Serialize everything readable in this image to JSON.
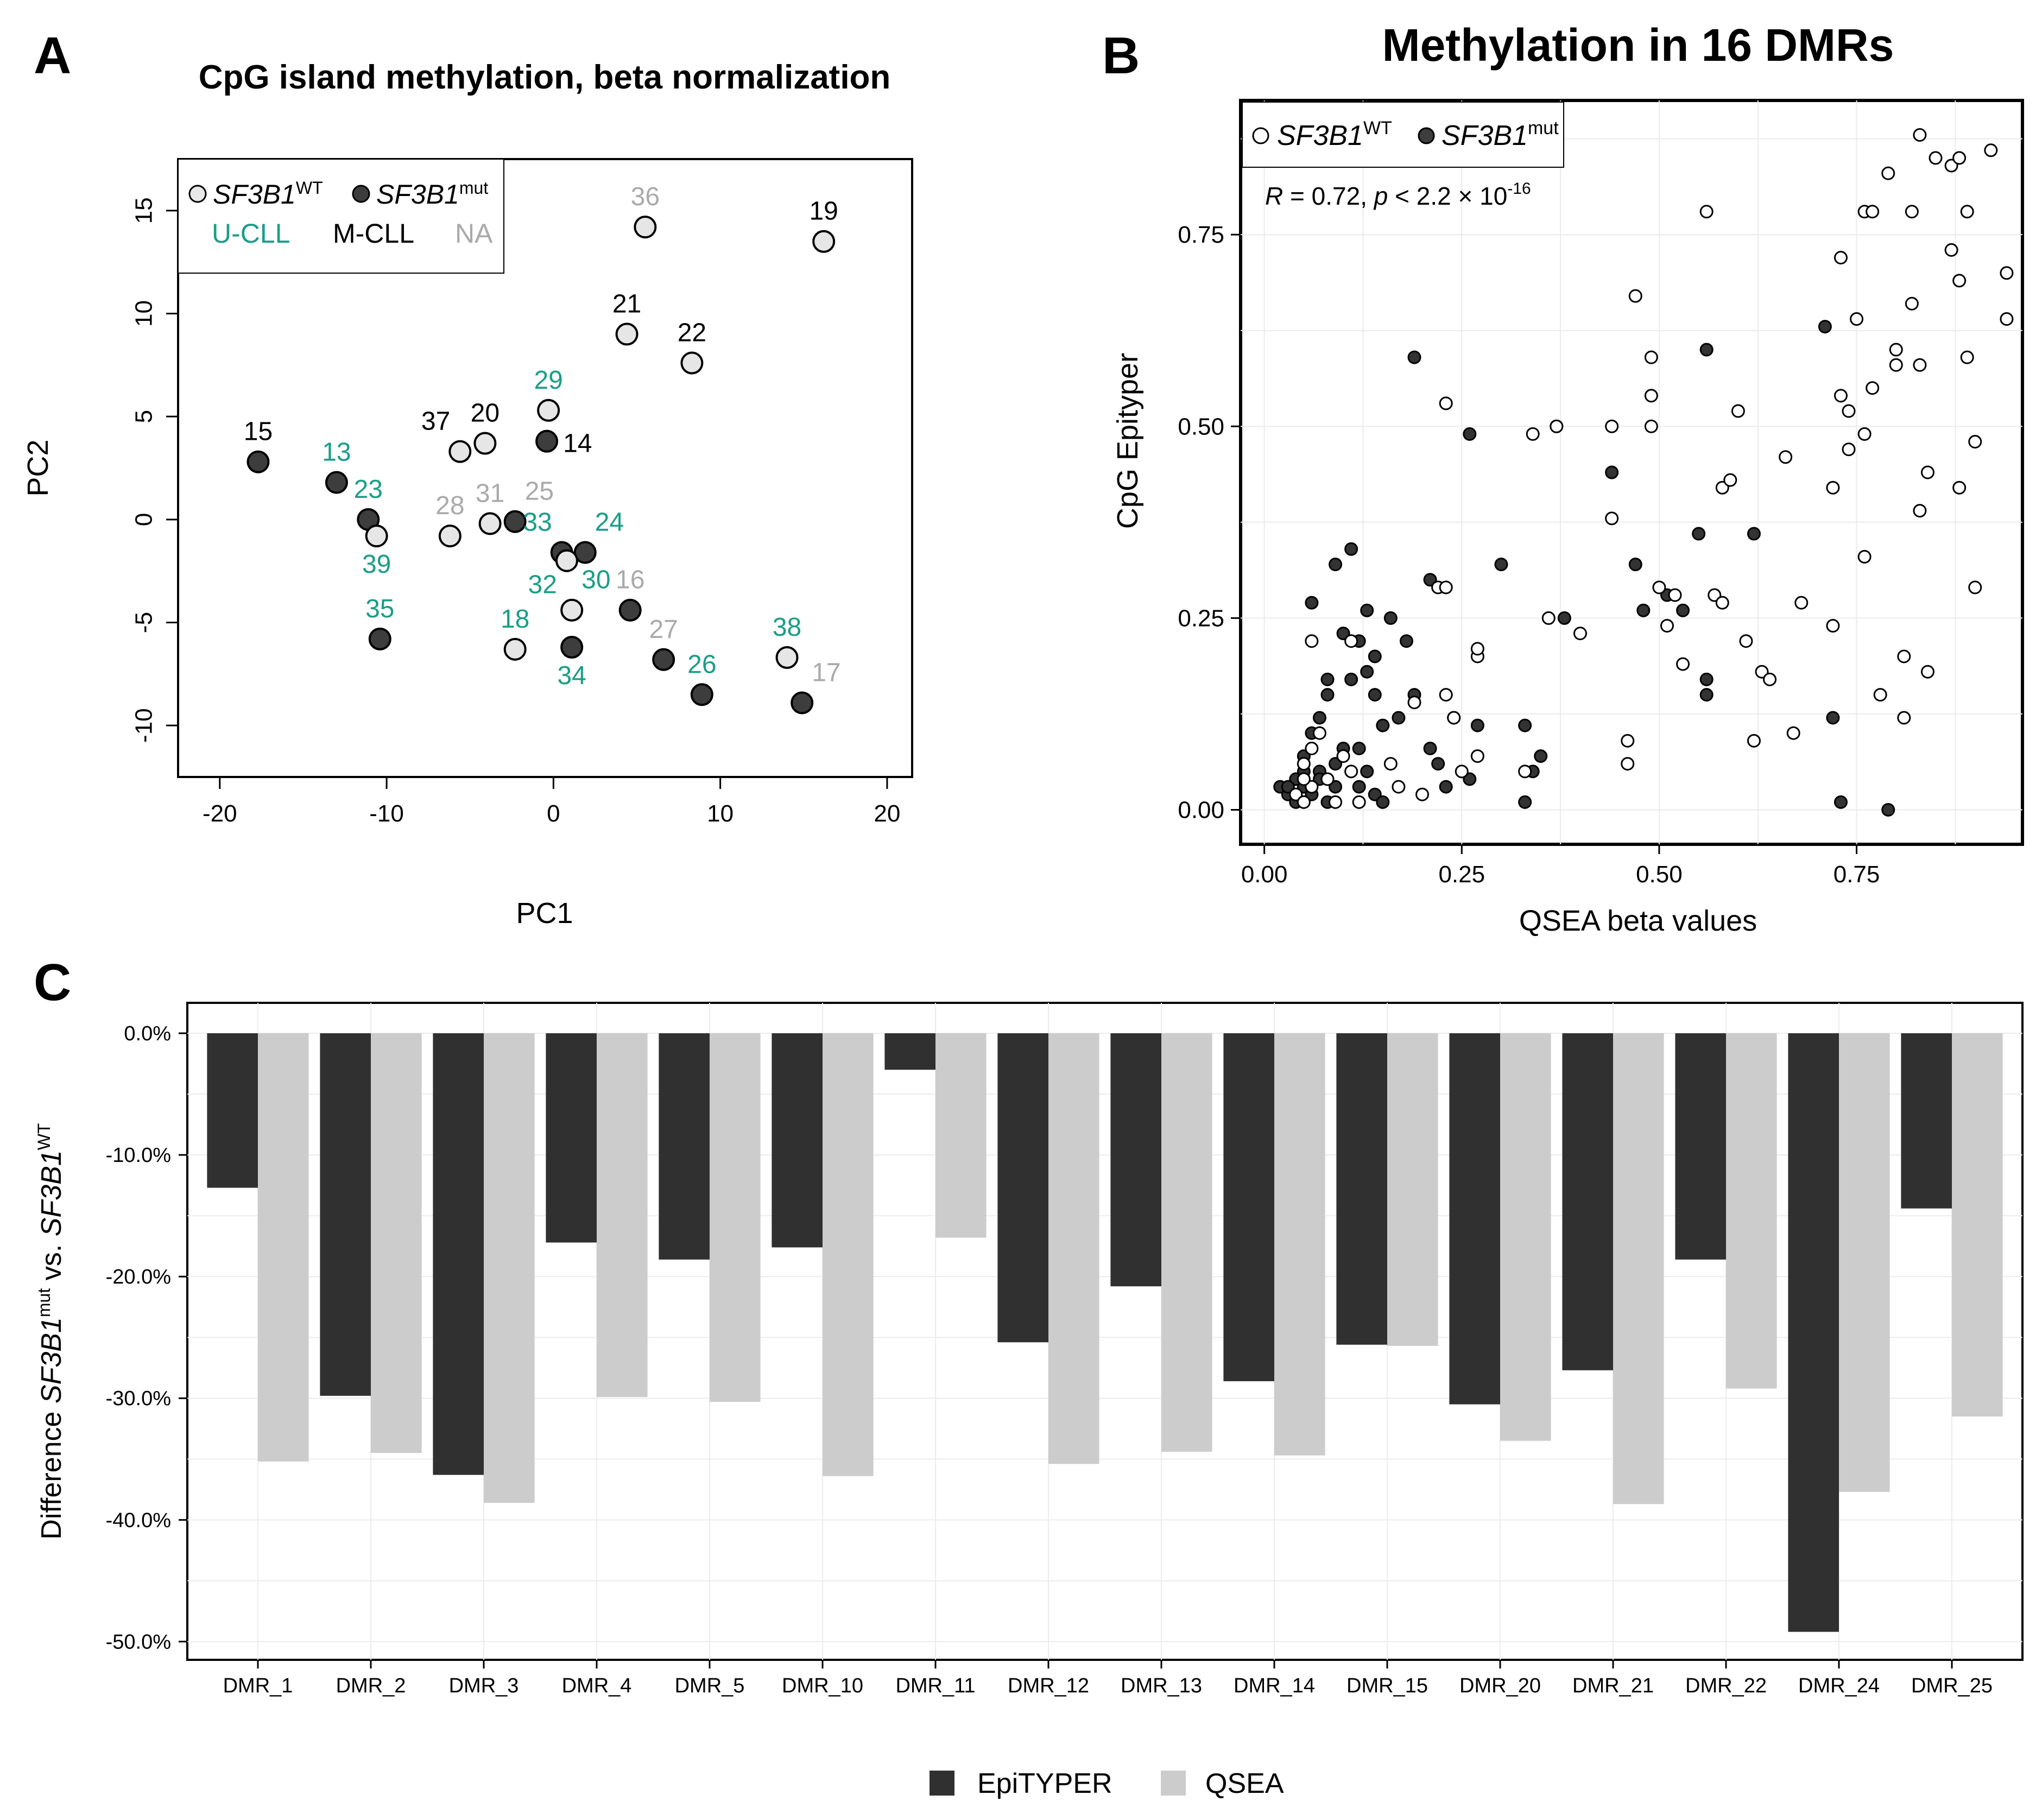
{
  "panels": {
    "a": {
      "letter": "A",
      "title": "CpG island methylation, beta normalization"
    },
    "b": {
      "letter": "B",
      "title": "Methylation in 16 DMRs"
    },
    "c": {
      "letter": "C"
    }
  },
  "chart_data": [
    {
      "id": "A",
      "type": "scatter",
      "title": "CpG island methylation, beta normalization",
      "xlabel": "PC1",
      "ylabel": "PC2",
      "xlim": [
        -22.5,
        21.5
      ],
      "ylim": [
        -12.5,
        17.5
      ],
      "xticks": [
        -20,
        -10,
        0,
        10,
        20
      ],
      "yticks": [
        -10,
        -5,
        0,
        5,
        10,
        15
      ],
      "xtick_labels": [
        "-20",
        "-10",
        "0",
        "10",
        "20"
      ],
      "ytick_labels": [
        "-10",
        "-5",
        "0",
        "5",
        "10",
        "15"
      ],
      "legend": {
        "position": "top-left",
        "genotypes": [
          {
            "base": "SF3B1",
            "sup": "WT",
            "fill": "#e8e8e8"
          },
          {
            "base": "SF3B1",
            "sup": "mut",
            "fill": "#3d3d3d"
          }
        ],
        "groups": [
          {
            "label": "U-CLL",
            "color": "#1a9e87"
          },
          {
            "label": "M-CLL",
            "color": "#000000"
          },
          {
            "label": "NA",
            "color": "#aaaaaa"
          }
        ]
      },
      "points": [
        {
          "id": "15",
          "x": -17.7,
          "y": 2.8,
          "mut": true,
          "group": "M-CLL",
          "pos": "above"
        },
        {
          "id": "13",
          "x": -13.0,
          "y": 1.8,
          "mut": true,
          "group": "U-CLL",
          "pos": "above"
        },
        {
          "id": "23",
          "x": -11.1,
          "y": 0.0,
          "mut": true,
          "group": "U-CLL",
          "pos": "above"
        },
        {
          "id": "39",
          "x": -10.6,
          "y": -0.8,
          "mut": false,
          "group": "U-CLL",
          "pos": "below"
        },
        {
          "id": "35",
          "x": -10.4,
          "y": -5.8,
          "mut": true,
          "group": "U-CLL",
          "pos": "above"
        },
        {
          "id": "37",
          "x": -5.6,
          "y": 3.3,
          "mut": false,
          "group": "M-CLL",
          "pos": "above-left"
        },
        {
          "id": "20",
          "x": -4.1,
          "y": 3.7,
          "mut": false,
          "group": "M-CLL",
          "pos": "above"
        },
        {
          "id": "28",
          "x": -6.2,
          "y": -0.8,
          "mut": false,
          "group": "NA",
          "pos": "above"
        },
        {
          "id": "31",
          "x": -3.8,
          "y": -0.2,
          "mut": false,
          "group": "NA",
          "pos": "above"
        },
        {
          "id": "25",
          "x": -2.3,
          "y": -0.1,
          "mut": true,
          "group": "NA",
          "pos": "above-right"
        },
        {
          "id": "29",
          "x": -0.3,
          "y": 5.3,
          "mut": false,
          "group": "U-CLL",
          "pos": "above"
        },
        {
          "id": "14",
          "x": -0.4,
          "y": 3.8,
          "mut": true,
          "group": "M-CLL",
          "pos": "right"
        },
        {
          "id": "33",
          "x": 0.5,
          "y": -1.6,
          "mut": true,
          "group": "U-CLL",
          "pos": "above-left"
        },
        {
          "id": "24",
          "x": 1.9,
          "y": -1.6,
          "mut": true,
          "group": "U-CLL",
          "pos": "above-right"
        },
        {
          "id": "32",
          "x": 0.8,
          "y": -2.0,
          "mut": false,
          "group": "U-CLL",
          "pos": "below-left"
        },
        {
          "id": "30",
          "x": 1.1,
          "y": -4.4,
          "mut": false,
          "group": "U-CLL",
          "pos": "above-right"
        },
        {
          "id": "34",
          "x": 1.1,
          "y": -6.2,
          "mut": true,
          "group": "U-CLL",
          "pos": "below"
        },
        {
          "id": "18",
          "x": -2.3,
          "y": -6.3,
          "mut": false,
          "group": "U-CLL",
          "pos": "above"
        },
        {
          "id": "16",
          "x": 4.6,
          "y": -4.4,
          "mut": true,
          "group": "NA",
          "pos": "above"
        },
        {
          "id": "36",
          "x": 5.5,
          "y": 14.2,
          "mut": false,
          "group": "NA",
          "pos": "above"
        },
        {
          "id": "21",
          "x": 4.4,
          "y": 9.0,
          "mut": false,
          "group": "M-CLL",
          "pos": "above"
        },
        {
          "id": "22",
          "x": 8.3,
          "y": 7.6,
          "mut": false,
          "group": "M-CLL",
          "pos": "above"
        },
        {
          "id": "19",
          "x": 16.2,
          "y": 13.5,
          "mut": false,
          "group": "M-CLL",
          "pos": "above"
        },
        {
          "id": "27",
          "x": 6.6,
          "y": -6.8,
          "mut": true,
          "group": "NA",
          "pos": "above"
        },
        {
          "id": "26",
          "x": 8.9,
          "y": -8.5,
          "mut": true,
          "group": "U-CLL",
          "pos": "above"
        },
        {
          "id": "38",
          "x": 14.0,
          "y": -6.7,
          "mut": false,
          "group": "U-CLL",
          "pos": "above"
        },
        {
          "id": "17",
          "x": 14.9,
          "y": -8.9,
          "mut": true,
          "group": "NA",
          "pos": "above-right"
        }
      ]
    },
    {
      "id": "B",
      "type": "scatter",
      "title": "Methylation in 16 DMRs",
      "xlabel": "QSEA beta values",
      "ylabel": "CpG Epityper",
      "xlim": [
        -0.03,
        0.96
      ],
      "ylim": [
        -0.045,
        0.925
      ],
      "xticks": [
        0.0,
        0.25,
        0.5,
        0.75
      ],
      "yticks": [
        0.0,
        0.25,
        0.5,
        0.75
      ],
      "xtick_labels": [
        "0.00",
        "0.25",
        "0.50",
        "0.75"
      ],
      "ytick_labels": [
        "0.00",
        "0.25",
        "0.50",
        "0.75"
      ],
      "legend": {
        "position": "top-left",
        "entries": [
          {
            "base": "SF3B1",
            "sup": "WT",
            "fill": "#ffffff"
          },
          {
            "base": "SF3B1",
            "sup": "mut",
            "fill": "#3d3d3d"
          }
        ]
      },
      "annotation": {
        "R": "R",
        "r_value": " = 0.72, ",
        "p": "p",
        "p_value": " < 2.2 × 10",
        "p_exp": "-16"
      },
      "points": [
        [
          0.02,
          0.03,
          1
        ],
        [
          0.03,
          0.02,
          1
        ],
        [
          0.04,
          0.01,
          1
        ],
        [
          0.05,
          0.03,
          1
        ],
        [
          0.06,
          0.02,
          1
        ],
        [
          0.04,
          0.04,
          1
        ],
        [
          0.07,
          0.05,
          1
        ],
        [
          0.08,
          0.01,
          1
        ],
        [
          0.09,
          0.03,
          1
        ],
        [
          0.05,
          0.07,
          1
        ],
        [
          0.06,
          0.1,
          1
        ],
        [
          0.07,
          0.12,
          1
        ],
        [
          0.08,
          0.15,
          1
        ],
        [
          0.09,
          0.06,
          1
        ],
        [
          0.1,
          0.08,
          1
        ],
        [
          0.12,
          0.03,
          1
        ],
        [
          0.13,
          0.05,
          1
        ],
        [
          0.14,
          0.02,
          1
        ],
        [
          0.15,
          0.01,
          1
        ],
        [
          0.11,
          0.17,
          1
        ],
        [
          0.13,
          0.18,
          1
        ],
        [
          0.14,
          0.2,
          1
        ],
        [
          0.16,
          0.25,
          1
        ],
        [
          0.18,
          0.22,
          1
        ],
        [
          0.19,
          0.15,
          1
        ],
        [
          0.15,
          0.11,
          1
        ],
        [
          0.13,
          0.26,
          1
        ],
        [
          0.11,
          0.34,
          1
        ],
        [
          0.09,
          0.32,
          1
        ],
        [
          0.06,
          0.27,
          1
        ],
        [
          0.1,
          0.23,
          1
        ],
        [
          0.08,
          0.17,
          1
        ],
        [
          0.12,
          0.22,
          1
        ],
        [
          0.17,
          0.12,
          1
        ],
        [
          0.21,
          0.08,
          1
        ],
        [
          0.22,
          0.06,
          1
        ],
        [
          0.23,
          0.03,
          1
        ],
        [
          0.26,
          0.04,
          1
        ],
        [
          0.27,
          0.11,
          1
        ],
        [
          0.3,
          0.32,
          1
        ],
        [
          0.19,
          0.59,
          1
        ],
        [
          0.26,
          0.49,
          1
        ],
        [
          0.34,
          0.05,
          1
        ],
        [
          0.35,
          0.07,
          1
        ],
        [
          0.33,
          0.11,
          1
        ],
        [
          0.33,
          0.01,
          1
        ],
        [
          0.38,
          0.25,
          1
        ],
        [
          0.44,
          0.44,
          1
        ],
        [
          0.47,
          0.32,
          1
        ],
        [
          0.48,
          0.26,
          1
        ],
        [
          0.51,
          0.28,
          1
        ],
        [
          0.53,
          0.26,
          1
        ],
        [
          0.55,
          0.36,
          1
        ],
        [
          0.56,
          0.15,
          1
        ],
        [
          0.56,
          0.17,
          1
        ],
        [
          0.56,
          0.6,
          1
        ],
        [
          0.62,
          0.36,
          1
        ],
        [
          0.71,
          0.63,
          1
        ],
        [
          0.72,
          0.12,
          1
        ],
        [
          0.73,
          0.01,
          1
        ],
        [
          0.79,
          0.0,
          1
        ],
        [
          0.12,
          0.08,
          1
        ],
        [
          0.07,
          0.04,
          1
        ],
        [
          0.05,
          0.05,
          1
        ],
        [
          0.03,
          0.03,
          1
        ],
        [
          0.14,
          0.15,
          1
        ],
        [
          0.21,
          0.3,
          1
        ],
        [
          0.24,
          0.12,
          1
        ],
        [
          0.04,
          0.02,
          0
        ],
        [
          0.05,
          0.01,
          0
        ],
        [
          0.06,
          0.03,
          0
        ],
        [
          0.05,
          0.06,
          0
        ],
        [
          0.06,
          0.08,
          0
        ],
        [
          0.07,
          0.1,
          0
        ],
        [
          0.08,
          0.04,
          0
        ],
        [
          0.09,
          0.01,
          0
        ],
        [
          0.1,
          0.07,
          0
        ],
        [
          0.11,
          0.05,
          0
        ],
        [
          0.12,
          0.01,
          0
        ],
        [
          0.06,
          0.22,
          0
        ],
        [
          0.11,
          0.22,
          0
        ],
        [
          0.17,
          0.03,
          0
        ],
        [
          0.2,
          0.02,
          0
        ],
        [
          0.16,
          0.06,
          0
        ],
        [
          0.19,
          0.14,
          0
        ],
        [
          0.23,
          0.15,
          0
        ],
        [
          0.24,
          0.12,
          0
        ],
        [
          0.25,
          0.05,
          0
        ],
        [
          0.27,
          0.07,
          0
        ],
        [
          0.27,
          0.2,
          0
        ],
        [
          0.27,
          0.21,
          0
        ],
        [
          0.22,
          0.29,
          0
        ],
        [
          0.23,
          0.29,
          0
        ],
        [
          0.23,
          0.53,
          0
        ],
        [
          0.33,
          0.05,
          0
        ],
        [
          0.34,
          0.49,
          0
        ],
        [
          0.36,
          0.25,
          0
        ],
        [
          0.37,
          0.5,
          0
        ],
        [
          0.37,
          0.5,
          0
        ],
        [
          0.4,
          0.23,
          0
        ],
        [
          0.44,
          0.38,
          0
        ],
        [
          0.44,
          0.5,
          0
        ],
        [
          0.46,
          0.09,
          0
        ],
        [
          0.46,
          0.06,
          0
        ],
        [
          0.47,
          0.67,
          0
        ],
        [
          0.49,
          0.59,
          0
        ],
        [
          0.49,
          0.54,
          0
        ],
        [
          0.49,
          0.5,
          0
        ],
        [
          0.5,
          0.29,
          0
        ],
        [
          0.51,
          0.24,
          0
        ],
        [
          0.53,
          0.19,
          0
        ],
        [
          0.56,
          0.78,
          0
        ],
        [
          0.57,
          0.28,
          0
        ],
        [
          0.58,
          0.27,
          0
        ],
        [
          0.58,
          0.42,
          0
        ],
        [
          0.59,
          0.43,
          0
        ],
        [
          0.6,
          0.52,
          0
        ],
        [
          0.61,
          0.22,
          0
        ],
        [
          0.62,
          0.09,
          0
        ],
        [
          0.63,
          0.18,
          0
        ],
        [
          0.64,
          0.17,
          0
        ],
        [
          0.66,
          0.46,
          0
        ],
        [
          0.67,
          0.1,
          0
        ],
        [
          0.68,
          0.27,
          0
        ],
        [
          0.72,
          0.24,
          0
        ],
        [
          0.72,
          0.42,
          0
        ],
        [
          0.73,
          0.54,
          0
        ],
        [
          0.73,
          0.72,
          0
        ],
        [
          0.74,
          0.47,
          0
        ],
        [
          0.74,
          0.52,
          0
        ],
        [
          0.75,
          0.64,
          0
        ],
        [
          0.76,
          0.78,
          0
        ],
        [
          0.76,
          0.49,
          0
        ],
        [
          0.76,
          0.33,
          0
        ],
        [
          0.77,
          0.78,
          0
        ],
        [
          0.77,
          0.55,
          0
        ],
        [
          0.78,
          0.15,
          0
        ],
        [
          0.79,
          0.83,
          0
        ],
        [
          0.8,
          0.6,
          0
        ],
        [
          0.8,
          0.58,
          0
        ],
        [
          0.81,
          0.2,
          0
        ],
        [
          0.81,
          0.12,
          0
        ],
        [
          0.82,
          0.66,
          0
        ],
        [
          0.82,
          0.78,
          0
        ],
        [
          0.83,
          0.88,
          0
        ],
        [
          0.83,
          0.58,
          0
        ],
        [
          0.83,
          0.39,
          0
        ],
        [
          0.84,
          0.44,
          0
        ],
        [
          0.84,
          0.18,
          0
        ],
        [
          0.85,
          0.85,
          0
        ],
        [
          0.87,
          0.73,
          0
        ],
        [
          0.87,
          0.84,
          0
        ],
        [
          0.88,
          0.42,
          0
        ],
        [
          0.88,
          0.85,
          0
        ],
        [
          0.88,
          0.69,
          0
        ],
        [
          0.89,
          0.59,
          0
        ],
        [
          0.89,
          0.78,
          0
        ],
        [
          0.9,
          0.48,
          0
        ],
        [
          0.9,
          0.29,
          0
        ],
        [
          0.92,
          0.86,
          0
        ],
        [
          0.94,
          0.7,
          0
        ],
        [
          0.94,
          0.64,
          0
        ],
        [
          0.52,
          0.28,
          0
        ],
        [
          0.05,
          0.04,
          0
        ]
      ]
    },
    {
      "id": "C",
      "type": "bar",
      "ylabel": {
        "pre": "Difference ",
        "g1": "SF3B1",
        "s1": "mut",
        "mid": " vs. ",
        "g2": "SF3B1",
        "s2": "WT"
      },
      "ylim": [
        -51.5,
        2.5
      ],
      "yticks": [
        0,
        -10,
        -20,
        -30,
        -40,
        -50
      ],
      "ytick_labels": [
        "0.0%",
        "-10.0%",
        "-20.0%",
        "-30.0%",
        "-40.0%",
        "-50.0%"
      ],
      "categories": [
        "DMR_1",
        "DMR_2",
        "DMR_3",
        "DMR_4",
        "DMR_5",
        "DMR_10",
        "DMR_11",
        "DMR_12",
        "DMR_13",
        "DMR_14",
        "DMR_15",
        "DMR_20",
        "DMR_21",
        "DMR_22",
        "DMR_24",
        "DMR_25"
      ],
      "series": [
        {
          "name": "EpiTYPER",
          "color": "#303030",
          "values": [
            -12.7,
            -29.8,
            -36.3,
            -17.2,
            -18.6,
            -17.6,
            -3.0,
            -25.4,
            -20.8,
            -28.6,
            -25.6,
            -30.5,
            -27.7,
            -18.6,
            -49.2,
            -14.4
          ]
        },
        {
          "name": "QSEA",
          "color": "#cccccc",
          "values": [
            -35.2,
            -34.5,
            -38.6,
            -29.9,
            -30.3,
            -36.4,
            -16.8,
            -35.4,
            -34.4,
            -34.7,
            -25.7,
            -33.5,
            -38.7,
            -29.2,
            -37.7,
            -31.5
          ]
        }
      ],
      "legend": "bottom"
    }
  ]
}
